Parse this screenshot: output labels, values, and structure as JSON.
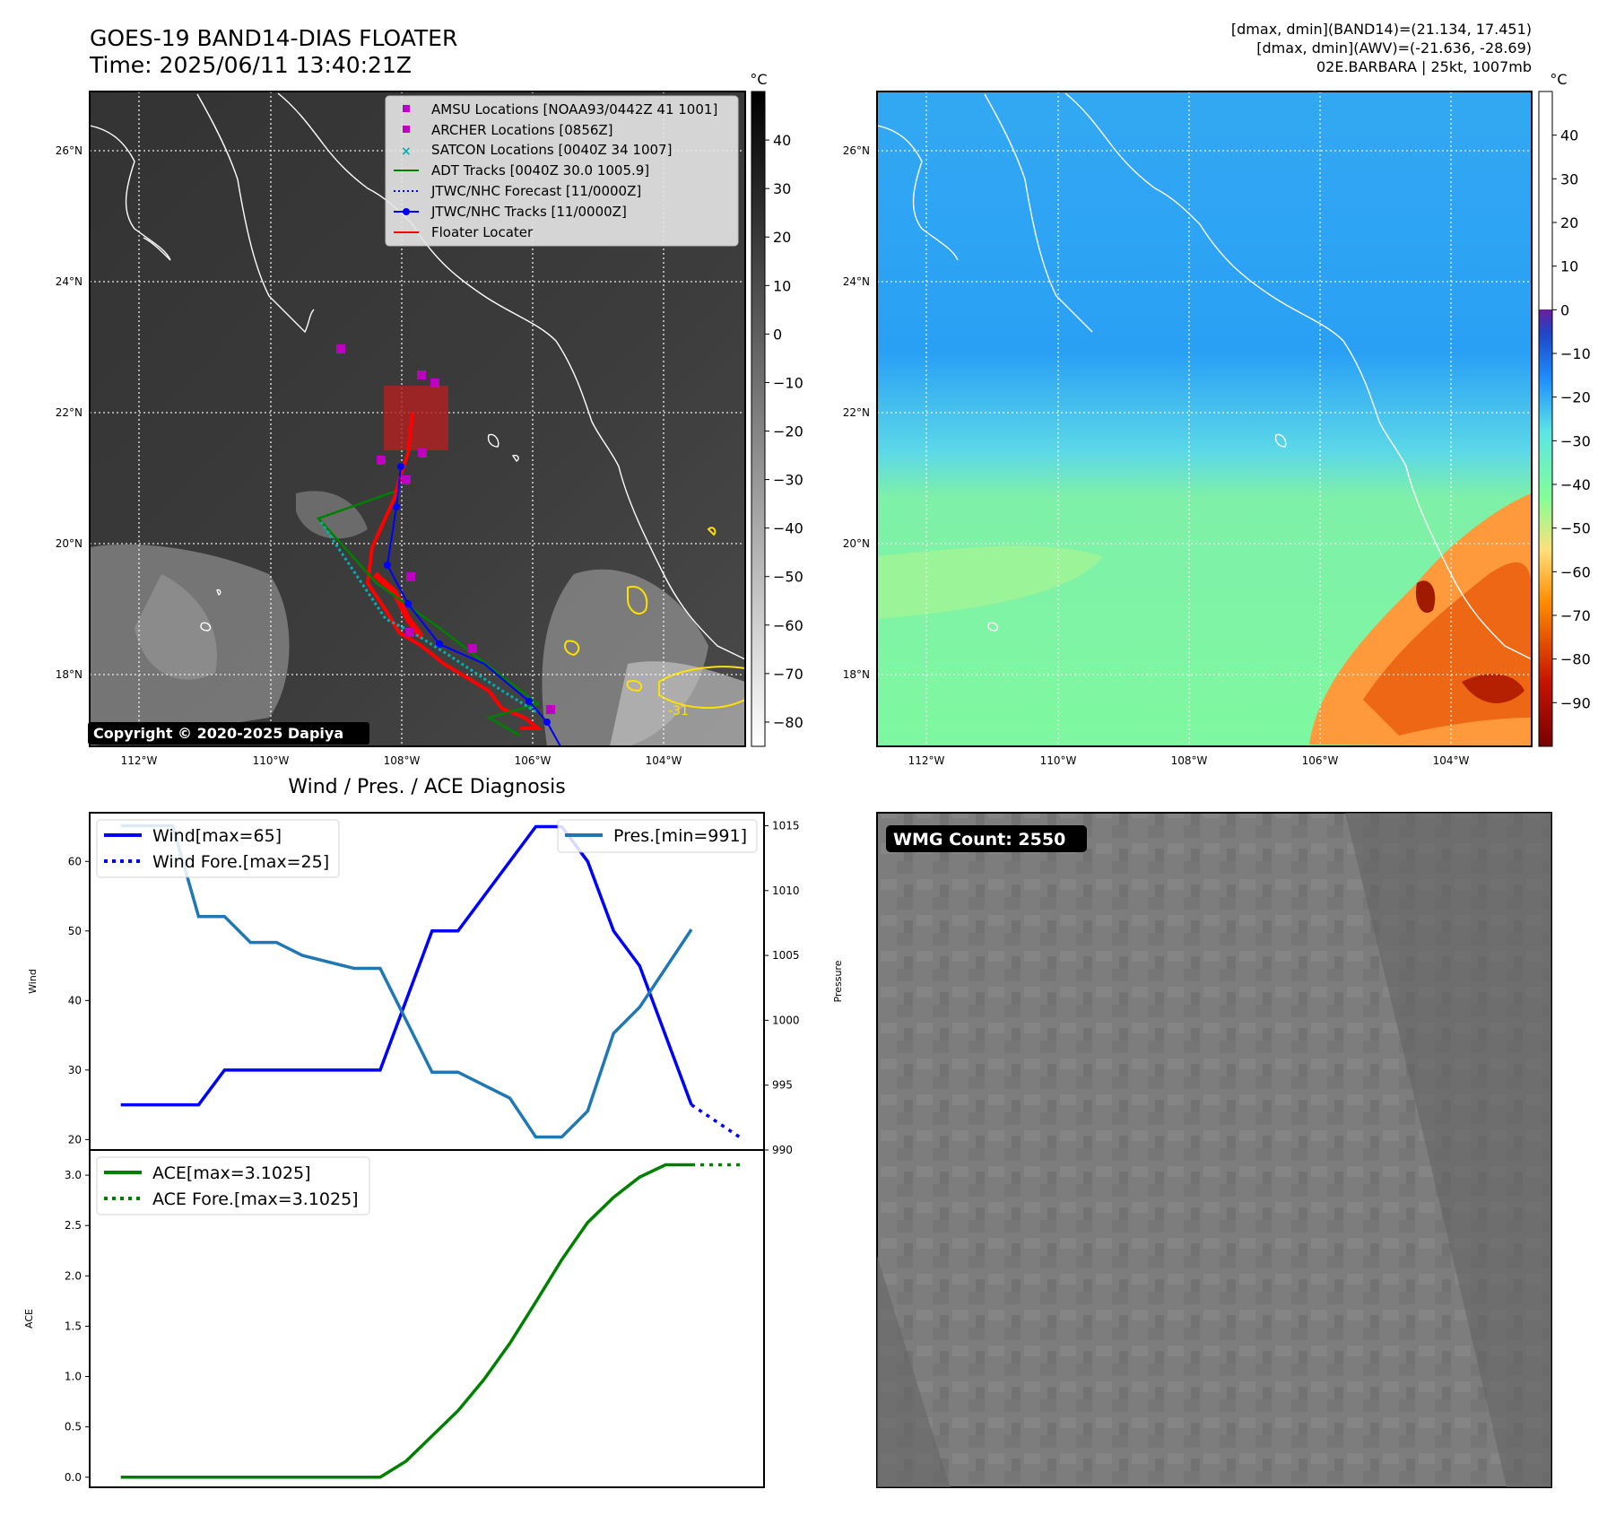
{
  "header": {
    "title_line1": "GOES-19 BAND14-DIAS FLOATER",
    "title_line2": "Time: 2025/06/11 13:40:21Z",
    "info_line1": "[dmax, dmin](BAND14)=(21.134, 17.451)",
    "info_line2": "[dmax, dmin](AWV)=(-21.636, -28.69)",
    "info_line3": "02E.BARBARA | 25kt, 1007mb"
  },
  "maps": {
    "lat_labels": [
      "26°N",
      "24°N",
      "22°N",
      "20°N",
      "18°N"
    ],
    "lon_labels": [
      "112°W",
      "110°W",
      "108°W",
      "106°W",
      "104°W"
    ],
    "copyright": "Copyright © 2020-2025 Dapiya",
    "contour_label": "-31",
    "colors": {
      "coast": "#ffffff",
      "grid": "#ffffff",
      "contour": "#ffe000"
    }
  },
  "band14_colorbar": {
    "unit": "°C",
    "ticks": [
      "40",
      "30",
      "20",
      "10",
      "0",
      "−10",
      "−20",
      "−30",
      "−40",
      "−50",
      "−60",
      "−70",
      "−80"
    ],
    "range": [
      -85,
      50
    ]
  },
  "awv_colorbar": {
    "unit": "°C",
    "ticks": [
      "40",
      "30",
      "20",
      "10",
      "0",
      "−10",
      "−20",
      "−30",
      "−40",
      "−50",
      "−60",
      "−70",
      "−80",
      "−90"
    ],
    "range": [
      -100,
      50
    ]
  },
  "map_legend": {
    "entries": [
      {
        "label": "AMSU Locations [NOAA93/0442Z 41 1001]",
        "symbol": "square",
        "color": "#c000c0"
      },
      {
        "label": "ARCHER Locations [0856Z]",
        "symbol": "square",
        "color": "#c000c0"
      },
      {
        "label": "SATCON Locations [0040Z 34 1007]",
        "symbol": "x",
        "color": "#00b0b0"
      },
      {
        "label": "ADT Tracks [0040Z 30.0 1005.9]",
        "symbol": "line",
        "color": "#008000"
      },
      {
        "label": "JTWC/NHC Forecast [11/0000Z]",
        "symbol": "dotted",
        "color": "#0000ff"
      },
      {
        "label": "JTWC/NHC Tracks [11/0000Z]",
        "symbol": "line-dot",
        "color": "#0000ff"
      },
      {
        "label": "Floater Locater",
        "symbol": "line",
        "color": "#ff0000"
      }
    ]
  },
  "wmg": {
    "label": "WMG Count: 2550"
  },
  "chart_data": [
    {
      "type": "line",
      "title": "Wind / Pres. / ACE Diagnosis",
      "ylabel": "Wind",
      "y2label": "Pressure",
      "ylim": [
        18.5,
        67
      ],
      "y2lim": [
        990,
        1016
      ],
      "yticks": [
        20,
        30,
        40,
        50,
        60
      ],
      "y2ticks": [
        990,
        995,
        1000,
        1005,
        1010,
        1015
      ],
      "x": [
        0,
        3,
        4,
        6,
        7,
        9,
        10,
        12,
        13,
        15,
        16,
        18,
        19,
        20,
        21,
        22,
        23,
        24,
        25,
        26,
        27
      ],
      "series": [
        {
          "name": "Wind[max=65]",
          "axis": "left",
          "color": "#0000ff",
          "x": [
            0,
            3,
            4,
            10,
            12,
            13,
            16,
            17,
            18,
            19,
            20,
            21,
            22
          ],
          "values": [
            25,
            25,
            30,
            30,
            50,
            50,
            65,
            65,
            60,
            50,
            45,
            35,
            25
          ]
        },
        {
          "name": "Wind Fore.[max=25]",
          "axis": "left",
          "color": "#0000ff",
          "style": "dotted",
          "x": [
            22,
            24
          ],
          "values": [
            25,
            20
          ]
        },
        {
          "name": "Pres.[min=991]",
          "axis": "right",
          "color": "#1f77b4",
          "x": [
            0,
            2,
            3,
            4,
            5,
            6,
            7,
            9,
            10,
            12,
            13,
            15,
            16,
            17,
            18,
            19,
            20,
            22
          ],
          "values": [
            1015,
            1015,
            1008,
            1008,
            1006,
            1006,
            1005,
            1004,
            1004,
            996,
            996,
            994,
            991,
            991,
            993,
            999,
            1001,
            1007
          ]
        }
      ]
    },
    {
      "type": "line",
      "ylabel": "ACE",
      "ylim": [
        -0.1,
        3.25
      ],
      "yticks": [
        "0.0",
        "0.5",
        "1.0",
        "1.5",
        "2.0",
        "2.5",
        "3.0"
      ],
      "series": [
        {
          "name": "ACE[max=3.1025]",
          "color": "#008000",
          "x": [
            0,
            10,
            11,
            12,
            13,
            14,
            15,
            16,
            17,
            18,
            19,
            20,
            21,
            22
          ],
          "values": [
            0,
            0,
            0.16,
            0.41,
            0.66,
            0.97,
            1.33,
            1.74,
            2.16,
            2.53,
            2.78,
            2.98,
            3.1025,
            3.1025
          ]
        },
        {
          "name": "ACE Fore.[max=3.1025]",
          "color": "#008000",
          "style": "dotted",
          "x": [
            22,
            24
          ],
          "values": [
            3.1025,
            3.1025
          ]
        }
      ]
    }
  ]
}
